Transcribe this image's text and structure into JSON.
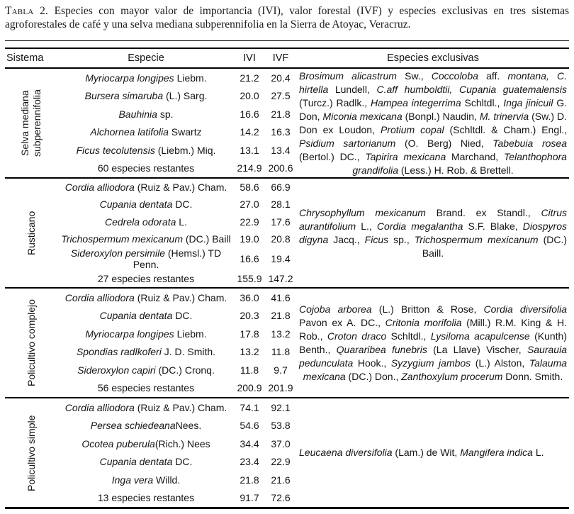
{
  "title": {
    "label": "Tabla 2.",
    "text": "Especies con mayor valor de importancia (IVI), valor forestal (IVF) y especies exclusivas en tres sistemas agroforestales de café y una selva mediana subperennifolia en la Sierra de Atoyac, Veracruz."
  },
  "columns": {
    "sistema": "Sistema",
    "especie": "Especie",
    "ivi": "IVI",
    "ivf": "IVF",
    "exclusivas": "Especies exclusivas"
  },
  "groups": [
    {
      "sistema": "Selva mediana subperennifolia",
      "rows": [
        {
          "sci": "Myriocarpa longipes",
          "rest": " Liebm.",
          "ivi": "21.2",
          "ivf": "20.4"
        },
        {
          "sci": "Bursera simaruba",
          "rest": " (L.) Sarg.",
          "ivi": "20.0",
          "ivf": "27.5"
        },
        {
          "sci": "Bauhinia",
          "rest": " sp.",
          "ivi": "16.6",
          "ivf": "21.8"
        },
        {
          "sci": "Alchornea latifolia",
          "rest": " Swartz",
          "ivi": "14.2",
          "ivf": "16.3"
        },
        {
          "sci": "Ficus tecolutensis",
          "rest": " (Liebm.) Miq.",
          "ivi": "13.1",
          "ivf": "13.4"
        },
        {
          "sci": "",
          "rest": "60 especies restantes",
          "ivi": "214.9",
          "ivf": "200.6"
        }
      ],
      "exclusivas": [
        {
          "t": "Brosimum alicastrum",
          "i": true
        },
        {
          "t": " Sw., ",
          "i": false
        },
        {
          "t": "Coccoloba",
          "i": true
        },
        {
          "t": " aff. ",
          "i": false
        },
        {
          "t": "montana, C. hirtella",
          "i": true
        },
        {
          "t": " Lundell, ",
          "i": false
        },
        {
          "t": "C.aff humboldtii, Cupania guatemalensis",
          "i": true
        },
        {
          "t": " (Turcz.) Radlk., ",
          "i": false
        },
        {
          "t": "Hampea integerrima",
          "i": true
        },
        {
          "t": " Schltdl., ",
          "i": false
        },
        {
          "t": "Inga jinicuil",
          "i": true
        },
        {
          "t": " G. Don, ",
          "i": false
        },
        {
          "t": "Miconia mexicana",
          "i": true
        },
        {
          "t": " (Bonpl.) Naudin, ",
          "i": false
        },
        {
          "t": "M. trinervia",
          "i": true
        },
        {
          "t": " (Sw.) D. Don ex Loudon, ",
          "i": false
        },
        {
          "t": "Protium copal",
          "i": true
        },
        {
          "t": " (Schltdl. & Cham.) Engl., ",
          "i": false
        },
        {
          "t": "Psidium sartorianum",
          "i": true
        },
        {
          "t": " (O. Berg) Nied, ",
          "i": false
        },
        {
          "t": "Tabebuia rosea",
          "i": true
        },
        {
          "t": " (Bertol.) DC., ",
          "i": false
        },
        {
          "t": "Tapirira mexicana",
          "i": true
        },
        {
          "t": " Marchand, ",
          "i": false
        },
        {
          "t": "Telanthophora grandifolia",
          "i": true
        },
        {
          "t": " (Less.) H. Rob. & Brettell.",
          "i": false
        }
      ]
    },
    {
      "sistema": "Rusticano",
      "rows": [
        {
          "sci": "Cordia alliodora",
          "rest": " (Ruiz & Pav.) Cham.",
          "ivi": "58.6",
          "ivf": "66.9"
        },
        {
          "sci": "Cupania dentata",
          "rest": " DC.",
          "ivi": "27.0",
          "ivf": "28.1"
        },
        {
          "sci": "Cedrela odorata",
          "rest": " L.",
          "ivi": "22.9",
          "ivf": "17.6"
        },
        {
          "sci": "Trichospermum mexicanum",
          "rest": " (DC.) Baill",
          "ivi": "19.0",
          "ivf": "20.8"
        },
        {
          "sci": "Sideroxylon persimile",
          "rest": " (Hemsl.) TD Penn.",
          "ivi": "16.6",
          "ivf": "19.4"
        },
        {
          "sci": "",
          "rest": "27 especies restantes",
          "ivi": "155.9",
          "ivf": "147.2"
        }
      ],
      "exclusivas": [
        {
          "t": "Chrysophyllum mexicanum",
          "i": true
        },
        {
          "t": " Brand. ex Standl., ",
          "i": false
        },
        {
          "t": "Citrus aurantifolium",
          "i": true
        },
        {
          "t": " L., ",
          "i": false
        },
        {
          "t": "Cordia megalantha",
          "i": true
        },
        {
          "t": " S.F. Blake, ",
          "i": false
        },
        {
          "t": "Diospyros digyna",
          "i": true
        },
        {
          "t": " Jacq., ",
          "i": false
        },
        {
          "t": "Ficus",
          "i": true
        },
        {
          "t": " sp., ",
          "i": false
        },
        {
          "t": "Trichospermum mexicanum",
          "i": true
        },
        {
          "t": " (DC.) Baill.",
          "i": false
        }
      ]
    },
    {
      "sistema": "Policultivo complejo",
      "rows": [
        {
          "sci": "Cordia alliodora",
          "rest": " (Ruiz & Pav.) Cham.",
          "ivi": "36.0",
          "ivf": "41.6"
        },
        {
          "sci": "Cupania dentata",
          "rest": " DC.",
          "ivi": "20.3",
          "ivf": "21.8"
        },
        {
          "sci": "Myriocarpa longipes",
          "rest": " Liebm.",
          "ivi": "17.8",
          "ivf": "13.2"
        },
        {
          "sci": "Spondias radlkoferi",
          "rest": " J. D. Smith.",
          "ivi": "13.2",
          "ivf": "11.8"
        },
        {
          "sci": "Sideroxylon capiri",
          "rest": " (DC.) Cronq.",
          "ivi": "11.8",
          "ivf": "9.7"
        },
        {
          "sci": "",
          "rest": "56 especies restantes",
          "ivi": "200.9",
          "ivf": "201.9"
        }
      ],
      "exclusivas": [
        {
          "t": "Cojoba arborea",
          "i": true
        },
        {
          "t": " (L.) Britton & Rose, ",
          "i": false
        },
        {
          "t": "Cordia diversifolia",
          "i": true
        },
        {
          "t": " Pavon ex A. DC., ",
          "i": false
        },
        {
          "t": "Critonia morifolia",
          "i": true
        },
        {
          "t": " (Mill.) R.M. King & H. Rob., ",
          "i": false
        },
        {
          "t": "Croton draco",
          "i": true
        },
        {
          "t": " Schltdl., ",
          "i": false
        },
        {
          "t": "Lysiloma acapulcense",
          "i": true
        },
        {
          "t": " (Kunth) Benth., ",
          "i": false
        },
        {
          "t": "Quararibea funebris",
          "i": true
        },
        {
          "t": " (La Llave) Vischer, ",
          "i": false
        },
        {
          "t": "Saurauia pedunculata",
          "i": true
        },
        {
          "t": " Hook., ",
          "i": false
        },
        {
          "t": "Syzygium jambos",
          "i": true
        },
        {
          "t": " (L.) Alston, ",
          "i": false
        },
        {
          "t": "Talauma mexicana",
          "i": true
        },
        {
          "t": " (DC.) Don., ",
          "i": false
        },
        {
          "t": "Zanthoxylum procerum",
          "i": true
        },
        {
          "t": " Donn. Smith.",
          "i": false
        }
      ]
    },
    {
      "sistema": "Policultivo simple",
      "rows": [
        {
          "sci": "Cordia alliodora",
          "rest": " (Ruiz & Pav.) Cham.",
          "ivi": "74.1",
          "ivf": "92.1"
        },
        {
          "sci": "Persea schiedeana",
          "rest": "Nees.",
          "ivi": "54.6",
          "ivf": "53.8"
        },
        {
          "sci": "Ocotea puberula",
          "rest": "(Rich.) Nees",
          "ivi": "34.4",
          "ivf": "37.0"
        },
        {
          "sci": "Cupania dentata",
          "rest": " DC.",
          "ivi": "23.4",
          "ivf": "22.9"
        },
        {
          "sci": "Inga vera",
          "rest": " Willd.",
          "ivi": "21.8",
          "ivf": "21.6"
        },
        {
          "sci": "",
          "rest": "13 especies restantes",
          "ivi": "91.7",
          "ivf": "72.6"
        }
      ],
      "exclusivas": [
        {
          "t": "Leucaena diversifolia",
          "i": true
        },
        {
          "t": " (Lam.) de Wit, ",
          "i": false
        },
        {
          "t": "Mangifera indica",
          "i": true
        },
        {
          "t": " L.",
          "i": false
        }
      ]
    }
  ]
}
